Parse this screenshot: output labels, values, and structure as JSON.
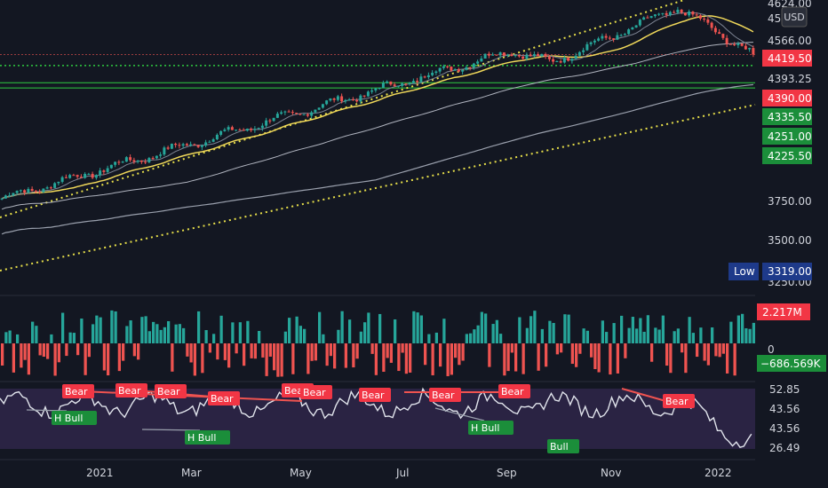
{
  "chart_data": {
    "type": "candlestick",
    "currency": "USD",
    "price_axis": {
      "ticks": [
        4624.0,
        4566.0,
        4393.25,
        3750.0,
        3500.0,
        3250.0
      ],
      "tick_labels": [
        "4624.00",
        "4566.00",
        "4393.25",
        "3750.00",
        "3500.00",
        "3250.00"
      ],
      "partial_label": "45",
      "badges": [
        {
          "value": 4419.5,
          "label": "4419.50",
          "color": "#f23645"
        },
        {
          "value": 4390.0,
          "label": "4390.00",
          "color": "#f23645"
        },
        {
          "value": 4335.5,
          "label": "4335.50",
          "color": "#1b8e3a"
        },
        {
          "value": 4251.0,
          "label": "4251.00",
          "color": "#1b8e3a"
        },
        {
          "value": 4225.5,
          "label": "4225.50",
          "color": "#1b8e3a"
        }
      ],
      "low": {
        "label": "Low",
        "value": "3319.00",
        "color": "#2962ff"
      }
    },
    "volume_panel": {
      "labels": [
        {
          "text": "2.217M",
          "color": "#f23645"
        },
        {
          "text": "0",
          "color": "none"
        },
        {
          "text": "−686.569K",
          "color": "#1b8e3a"
        }
      ]
    },
    "oscillator_panel": {
      "tick_labels": [
        "52.85",
        "43.56",
        "43.56",
        "26.49"
      ],
      "signals": [
        {
          "label": "Bear",
          "kind": "bear"
        },
        {
          "label": "H Bull",
          "kind": "bull"
        },
        {
          "label": "Bear",
          "kind": "bear"
        },
        {
          "label": "Bear",
          "kind": "bear"
        },
        {
          "label": "H Bull",
          "kind": "bull"
        },
        {
          "label": "Bear",
          "kind": "bear"
        },
        {
          "label": "Bear",
          "kind": "bear"
        },
        {
          "label": "Bear",
          "kind": "bear"
        },
        {
          "label": "Bear",
          "kind": "bear"
        },
        {
          "label": "Bear",
          "kind": "bear"
        },
        {
          "label": "Bear",
          "kind": "bear"
        },
        {
          "label": "H Bull",
          "kind": "bull"
        },
        {
          "label": "Bull",
          "kind": "bull"
        },
        {
          "label": "Bear",
          "kind": "bear"
        }
      ]
    },
    "time_axis": [
      "2021",
      "Mar",
      "May",
      "Jul",
      "Sep",
      "Nov",
      "2022"
    ],
    "colors": {
      "background": "#131722",
      "up": "#26a69a",
      "down": "#ef5350",
      "bear_label": "#f23645",
      "bull_label": "#1b8e3a",
      "ma_fast": "#f0d85a",
      "channel": "#e8e04a",
      "support": "#2ecc40"
    }
  }
}
